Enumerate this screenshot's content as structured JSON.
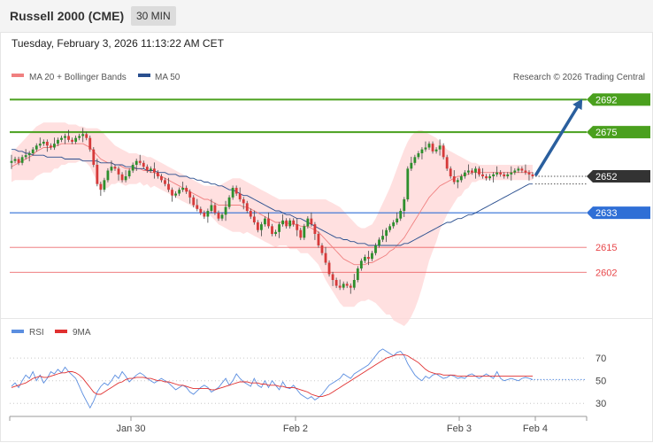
{
  "header": {
    "title": "Russell 2000 (CME)",
    "timeframe": "30 MIN"
  },
  "datetime": "Tuesday, February 3, 2026 11:13:22 AM CET",
  "copyright": "Research © 2026 Trading Central",
  "colors": {
    "green": "#4aa01e",
    "blue": "#2f6fd6",
    "red": "#e8474a",
    "dark": "#333333",
    "bb_fill": "#ffd6d6",
    "ma20": "#f08080",
    "ma50": "#2a4f8f",
    "arrow": "#2a5f9e",
    "rsi": "#5b8ee0",
    "rsi_ma": "#e03030",
    "candle_up": "#2d8f2d",
    "candle_down": "#d63a3a"
  },
  "chart_data": [
    {
      "type": "candlestick",
      "legend": [
        {
          "name": "MA 20 + Bollinger Bands",
          "color": "#f08080"
        },
        {
          "name": "MA 50",
          "color": "#2a4f8f"
        }
      ],
      "x_ticks": [
        "Jan 30",
        "Feb 2",
        "Feb 3",
        "Feb 4"
      ],
      "ylim": [
        2580,
        2700
      ],
      "levels": [
        {
          "value": 2692,
          "label": "2692",
          "color": "#4aa01e",
          "style": "tag"
        },
        {
          "value": 2675,
          "label": "2675",
          "color": "#4aa01e",
          "style": "tag"
        },
        {
          "value": 2652,
          "label": "2652",
          "color": "#333333",
          "style": "tag"
        },
        {
          "value": 2633,
          "label": "2633",
          "color": "#2f6fd6",
          "style": "tag"
        },
        {
          "value": 2615,
          "label": "2615",
          "color": "#e8474a",
          "style": "text"
        },
        {
          "value": 2602,
          "label": "2602",
          "color": "#e8474a",
          "style": "text"
        }
      ],
      "close": [
        2660,
        2661,
        2659,
        2662,
        2663,
        2664,
        2666,
        2668,
        2669,
        2670,
        2668,
        2667,
        2669,
        2671,
        2672,
        2673,
        2671,
        2670,
        2672,
        2673,
        2674,
        2672,
        2666,
        2658,
        2648,
        2645,
        2650,
        2655,
        2657,
        2656,
        2653,
        2650,
        2652,
        2655,
        2658,
        2660,
        2659,
        2657,
        2655,
        2656,
        2654,
        2652,
        2650,
        2648,
        2645,
        2642,
        2643,
        2645,
        2646,
        2644,
        2641,
        2637,
        2635,
        2633,
        2631,
        2634,
        2637,
        2633,
        2630,
        2632,
        2636,
        2641,
        2646,
        2643,
        2640,
        2638,
        2634,
        2631,
        2628,
        2624,
        2627,
        2630,
        2626,
        2622,
        2623,
        2627,
        2629,
        2626,
        2629,
        2627,
        2624,
        2620,
        2626,
        2630,
        2627,
        2622,
        2616,
        2612,
        2607,
        2601,
        2598,
        2595,
        2594,
        2596,
        2595,
        2594,
        2598,
        2604,
        2608,
        2610,
        2609,
        2612,
        2616,
        2619,
        2621,
        2624,
        2626,
        2628,
        2630,
        2634,
        2640,
        2656,
        2659,
        2662,
        2664,
        2666,
        2667,
        2669,
        2665,
        2666,
        2668,
        2662,
        2656,
        2652,
        2649,
        2650,
        2652,
        2654,
        2655,
        2654,
        2656,
        2653,
        2652,
        2651,
        2652,
        2653,
        2654,
        2653,
        2652,
        2653,
        2654,
        2655,
        2656,
        2655,
        2654,
        2653,
        2652
      ],
      "ma20": [
        2657,
        2658,
        2659,
        2660,
        2661,
        2662,
        2663,
        2665,
        2666,
        2667,
        2667,
        2667,
        2668,
        2668,
        2669,
        2669,
        2669,
        2669,
        2669,
        2669,
        2669,
        2668,
        2667,
        2665,
        2663,
        2661,
        2660,
        2659,
        2659,
        2658,
        2658,
        2657,
        2656,
        2656,
        2656,
        2656,
        2656,
        2655,
        2655,
        2654,
        2654,
        2653,
        2652,
        2651,
        2650,
        2649,
        2648,
        2647,
        2646,
        2645,
        2644,
        2643,
        2642,
        2641,
        2640,
        2640,
        2639,
        2638,
        2637,
        2637,
        2637,
        2637,
        2637,
        2637,
        2637,
        2636,
        2636,
        2635,
        2634,
        2633,
        2632,
        2631,
        2630,
        2629,
        2628,
        2628,
        2628,
        2628,
        2627,
        2627,
        2627,
        2626,
        2626,
        2626,
        2625,
        2624,
        2623,
        2621,
        2619,
        2617,
        2615,
        2613,
        2611,
        2609,
        2608,
        2607,
        2606,
        2606,
        2606,
        2606,
        2607,
        2607,
        2608,
        2609,
        2610,
        2611,
        2613,
        2614,
        2616,
        2618,
        2620,
        2623,
        2626,
        2629,
        2632,
        2635,
        2638,
        2641,
        2643,
        2645,
        2647,
        2648,
        2649,
        2650,
        2651,
        2652,
        2652,
        2653,
        2653,
        2654,
        2654,
        2654,
        2654,
        2654,
        2654,
        2654,
        2654,
        2654,
        2654,
        2654,
        2654,
        2654,
        2654,
        2654,
        2654,
        2654,
        2654
      ],
      "bb_upper": [
        2665,
        2666,
        2668,
        2670,
        2672,
        2674,
        2676,
        2678,
        2679,
        2680,
        2680,
        2680,
        2680,
        2680,
        2680,
        2680,
        2679,
        2679,
        2679,
        2678,
        2678,
        2677,
        2677,
        2677,
        2677,
        2676,
        2674,
        2672,
        2670,
        2668,
        2667,
        2666,
        2665,
        2664,
        2664,
        2664,
        2663,
        2663,
        2662,
        2662,
        2661,
        2660,
        2659,
        2658,
        2657,
        2656,
        2655,
        2654,
        2653,
        2652,
        2651,
        2650,
        2649,
        2648,
        2647,
        2647,
        2647,
        2647,
        2647,
        2648,
        2649,
        2650,
        2651,
        2651,
        2651,
        2650,
        2649,
        2648,
        2647,
        2646,
        2645,
        2644,
        2643,
        2642,
        2641,
        2640,
        2640,
        2640,
        2640,
        2640,
        2640,
        2640,
        2640,
        2640,
        2640,
        2640,
        2640,
        2640,
        2640,
        2639,
        2638,
        2637,
        2636,
        2634,
        2632,
        2630,
        2628,
        2626,
        2625,
        2625,
        2626,
        2627,
        2630,
        2634,
        2638,
        2642,
        2646,
        2651,
        2656,
        2661,
        2666,
        2670,
        2673,
        2675,
        2676,
        2676,
        2675,
        2674,
        2673,
        2672,
        2670,
        2668,
        2666,
        2665,
        2664,
        2663,
        2662,
        2661,
        2660,
        2659,
        2659,
        2658,
        2658,
        2658,
        2658,
        2658,
        2658,
        2658,
        2658,
        2658,
        2658,
        2658,
        2658,
        2658,
        2658,
        2658,
        2658
      ],
      "bb_lower": [
        2649,
        2650,
        2650,
        2650,
        2650,
        2650,
        2650,
        2652,
        2653,
        2654,
        2654,
        2654,
        2656,
        2656,
        2658,
        2658,
        2659,
        2659,
        2659,
        2660,
        2660,
        2659,
        2657,
        2653,
        2649,
        2646,
        2646,
        2646,
        2648,
        2648,
        2649,
        2648,
        2647,
        2648,
        2648,
        2648,
        2649,
        2647,
        2648,
        2646,
        2647,
        2646,
        2645,
        2644,
        2643,
        2642,
        2641,
        2640,
        2639,
        2638,
        2637,
        2636,
        2635,
        2634,
        2633,
        2633,
        2631,
        2629,
        2627,
        2626,
        2625,
        2624,
        2623,
        2623,
        2623,
        2622,
        2623,
        2622,
        2621,
        2620,
        2619,
        2618,
        2617,
        2616,
        2615,
        2616,
        2616,
        2616,
        2614,
        2614,
        2614,
        2612,
        2612,
        2612,
        2610,
        2608,
        2606,
        2602,
        2598,
        2595,
        2592,
        2589,
        2586,
        2584,
        2584,
        2584,
        2584,
        2586,
        2587,
        2587,
        2588,
        2587,
        2586,
        2584,
        2582,
        2580,
        2580,
        2577,
        2576,
        2575,
        2574,
        2576,
        2579,
        2583,
        2588,
        2594,
        2601,
        2608,
        2613,
        2618,
        2624,
        2628,
        2632,
        2635,
        2638,
        2641,
        2642,
        2645,
        2646,
        2649,
        2649,
        2650,
        2650,
        2650,
        2650,
        2650,
        2650,
        2650,
        2650,
        2650,
        2650,
        2650,
        2650,
        2650,
        2650,
        2650,
        2650
      ],
      "ma50": [
        2666,
        2666,
        2665,
        2665,
        2664,
        2664,
        2663,
        2663,
        2663,
        2663,
        2662,
        2662,
        2662,
        2662,
        2662,
        2661,
        2661,
        2661,
        2661,
        2661,
        2660,
        2660,
        2660,
        2660,
        2660,
        2659,
        2659,
        2659,
        2659,
        2658,
        2658,
        2658,
        2657,
        2657,
        2657,
        2656,
        2656,
        2656,
        2655,
        2655,
        2655,
        2654,
        2654,
        2654,
        2653,
        2653,
        2653,
        2652,
        2652,
        2652,
        2651,
        2651,
        2650,
        2650,
        2649,
        2649,
        2648,
        2648,
        2647,
        2647,
        2646,
        2645,
        2645,
        2644,
        2643,
        2642,
        2642,
        2641,
        2640,
        2639,
        2638,
        2637,
        2636,
        2635,
        2634,
        2634,
        2633,
        2632,
        2632,
        2631,
        2630,
        2630,
        2629,
        2628,
        2627,
        2626,
        2625,
        2624,
        2623,
        2622,
        2621,
        2620,
        2620,
        2619,
        2619,
        2618,
        2618,
        2617,
        2617,
        2617,
        2616,
        2616,
        2616,
        2616,
        2616,
        2616,
        2616,
        2616,
        2616,
        2616,
        2617,
        2617,
        2618,
        2619,
        2620,
        2621,
        2622,
        2623,
        2624,
        2625,
        2626,
        2627,
        2628,
        2628,
        2629,
        2630,
        2630,
        2631,
        2632,
        2632,
        2633,
        2634,
        2635,
        2636,
        2637,
        2638,
        2639,
        2640,
        2641,
        2642,
        2643,
        2644,
        2645,
        2646,
        2647,
        2648,
        2648
      ]
    },
    {
      "type": "line",
      "legend": [
        {
          "name": "RSI",
          "color": "#5b8ee0"
        },
        {
          "name": "9MA",
          "color": "#e03030"
        }
      ],
      "y_ticks": [
        30,
        50,
        70
      ],
      "ylim": [
        20,
        85
      ],
      "rsi": [
        45,
        48,
        44,
        50,
        55,
        52,
        58,
        50,
        55,
        48,
        52,
        58,
        56,
        60,
        57,
        62,
        58,
        55,
        52,
        45,
        38,
        32,
        26,
        32,
        40,
        45,
        48,
        46,
        50,
        55,
        52,
        58,
        54,
        49,
        52,
        55,
        57,
        55,
        52,
        50,
        48,
        50,
        52,
        50,
        48,
        45,
        42,
        44,
        46,
        44,
        40,
        38,
        41,
        44,
        46,
        44,
        40,
        42,
        44,
        48,
        52,
        46,
        50,
        56,
        52,
        49,
        47,
        45,
        52,
        46,
        44,
        50,
        44,
        50,
        46,
        42,
        49,
        44,
        43,
        46,
        42,
        38,
        36,
        34,
        36,
        33,
        35,
        38,
        42,
        46,
        48,
        50,
        52,
        56,
        54,
        52,
        56,
        58,
        60,
        62,
        64,
        68,
        72,
        76,
        78,
        76,
        74,
        72,
        75,
        76,
        72,
        65,
        60,
        55,
        52,
        50,
        54,
        52,
        55,
        56,
        54,
        52,
        53,
        55,
        54,
        52,
        53,
        52,
        55,
        56,
        54,
        52,
        54,
        56,
        54,
        52,
        58,
        52,
        50,
        51,
        52,
        51,
        50,
        52,
        53,
        52,
        51
      ],
      "rsi_ma": [
        44,
        45,
        46,
        47,
        48,
        50,
        52,
        53,
        54,
        53,
        53,
        54,
        55,
        56,
        57,
        57,
        58,
        58,
        57,
        55,
        52,
        48,
        44,
        40,
        38,
        38,
        40,
        42,
        44,
        46,
        48,
        49,
        51,
        52,
        52,
        53,
        53,
        53,
        52,
        52,
        51,
        50,
        50,
        49,
        49,
        48,
        47,
        46,
        46,
        45,
        44,
        43,
        43,
        43,
        43,
        43,
        42,
        42,
        43,
        44,
        45,
        46,
        47,
        48,
        49,
        49,
        49,
        48,
        48,
        48,
        47,
        47,
        46,
        46,
        46,
        45,
        45,
        44,
        44,
        44,
        43,
        42,
        41,
        40,
        38,
        37,
        36,
        36,
        37,
        38,
        40,
        42,
        44,
        46,
        48,
        50,
        52,
        54,
        56,
        58,
        60,
        62,
        64,
        66,
        68,
        70,
        71,
        72,
        73,
        73,
        73,
        72,
        70,
        68,
        66,
        63,
        60,
        58,
        57,
        56,
        56,
        55,
        55,
        55,
        55,
        54,
        54,
        54,
        54,
        54,
        54,
        54,
        54,
        54,
        54,
        54,
        54,
        54,
        54,
        54,
        54,
        54,
        54,
        54,
        54,
        54,
        54
      ]
    }
  ]
}
